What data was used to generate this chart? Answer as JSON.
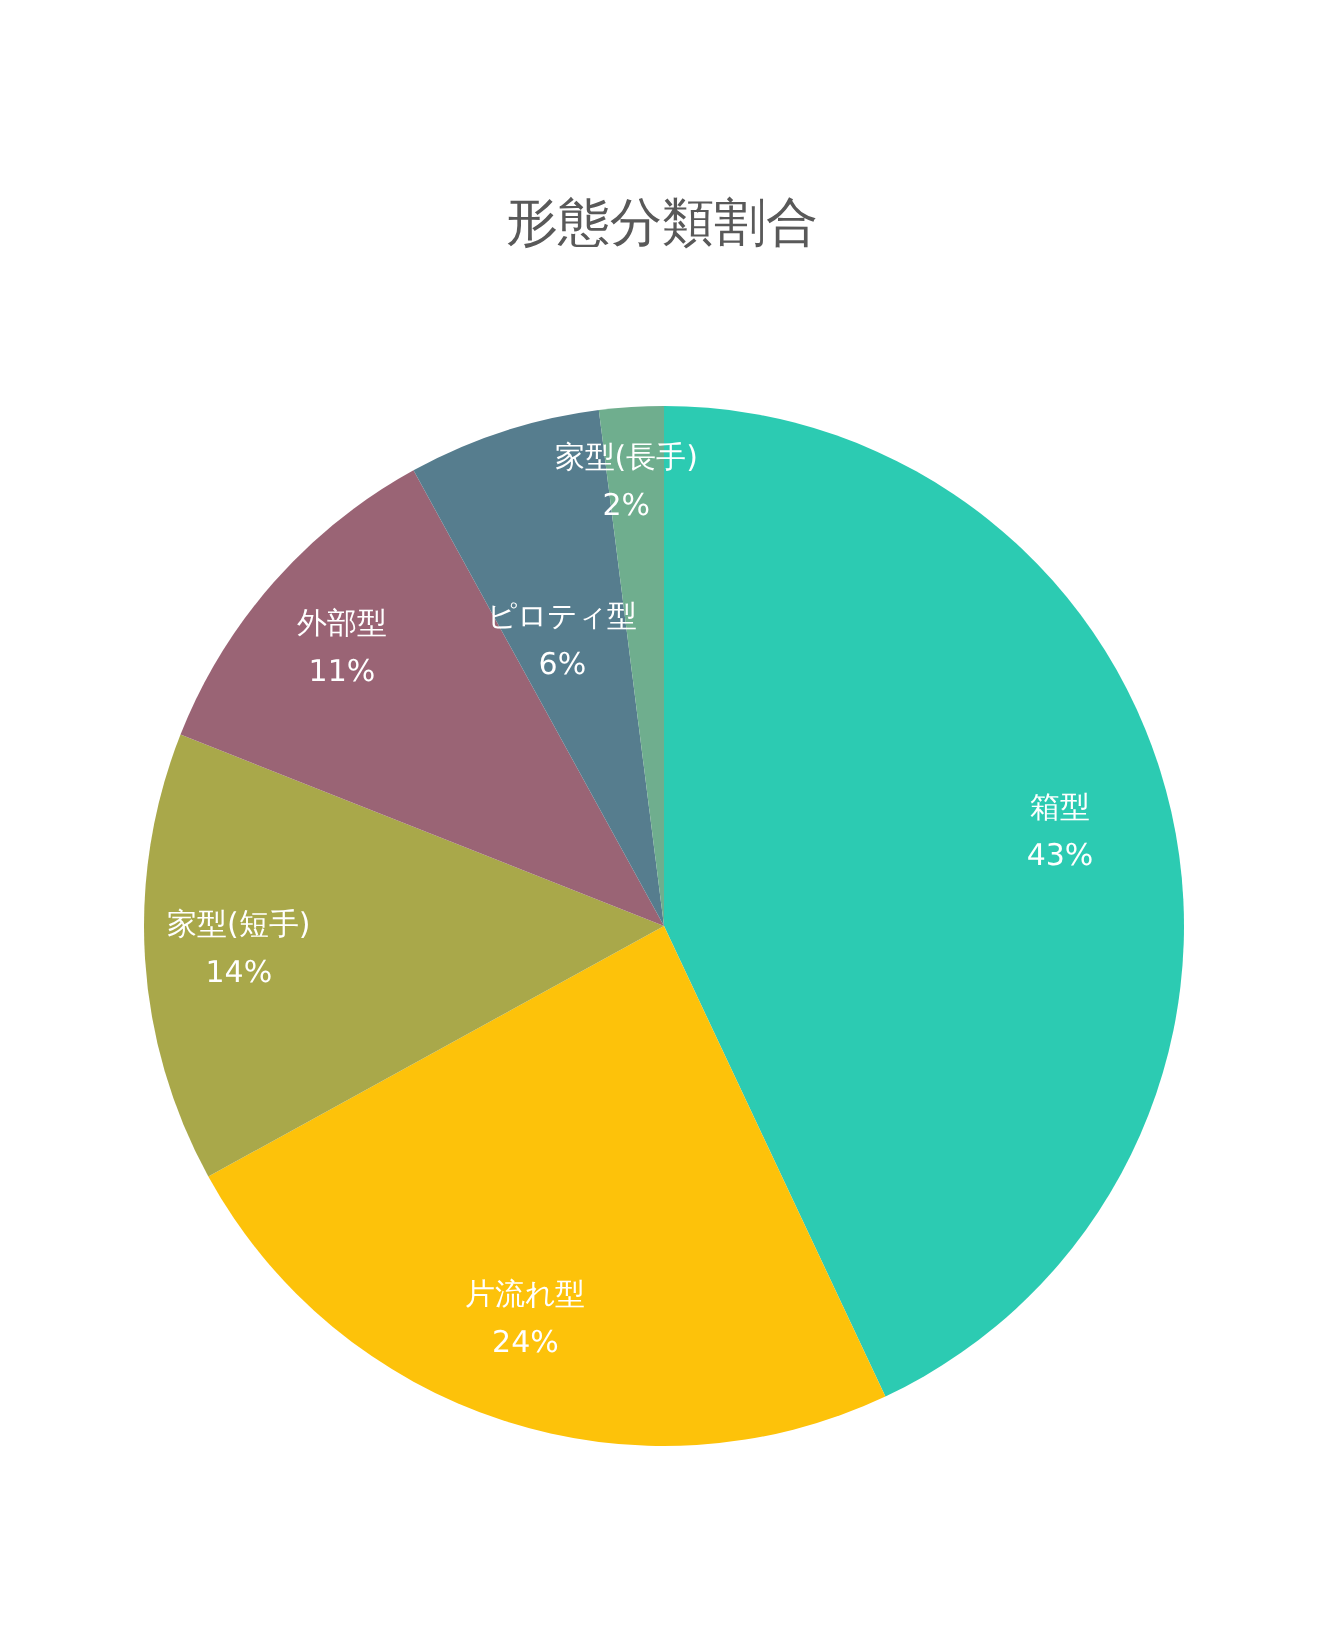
{
  "chart_data": {
    "type": "pie",
    "title": "形態分類割合",
    "categories": [
      "箱型",
      "片流れ型",
      "家型(短手)",
      "外部型",
      "ピロティ型",
      "家型(長手)"
    ],
    "values": [
      43,
      24,
      14,
      11,
      6,
      2
    ],
    "value_labels": [
      "43%",
      "24%",
      "14%",
      "11%",
      "6%",
      "2%"
    ],
    "colors": [
      "#2ccbb2",
      "#fdc20a",
      "#a9a84a",
      "#9a6475",
      "#567d8e",
      "#6fae8e"
    ],
    "legend": false
  }
}
